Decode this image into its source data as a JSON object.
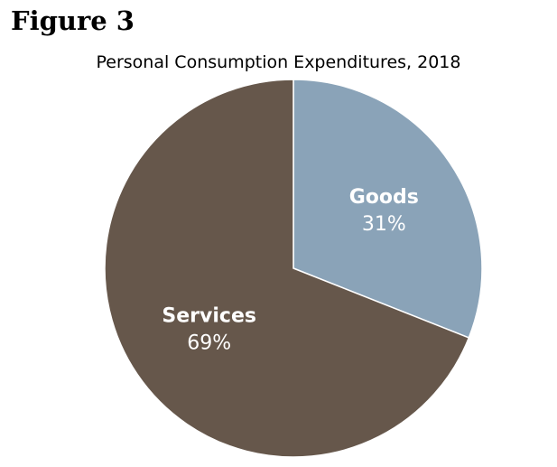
{
  "figure_label": "Figure 3",
  "chart_data": {
    "type": "pie",
    "title": "Personal Consumption Expenditures, 2018",
    "slices": [
      {
        "label": "Goods",
        "value": 31,
        "display": "31%",
        "color": "#8aa3b8",
        "text_color": "#ffffff"
      },
      {
        "label": "Services",
        "value": 69,
        "display": "69%",
        "color": "#66574b",
        "text_color": "#ffffff"
      }
    ],
    "start_angle_deg": 0,
    "direction": "clockwise"
  }
}
